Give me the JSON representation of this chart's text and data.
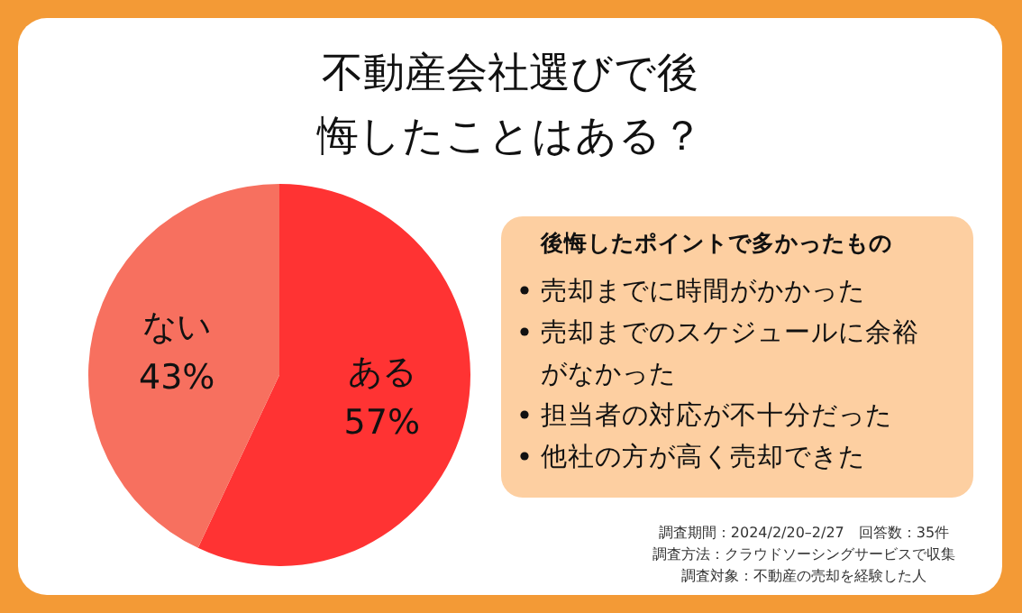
{
  "chart_data": [
    {
      "type": "pie",
      "title": "不動産会社選びで後悔したことはある？",
      "categories": [
        "ある",
        "ない"
      ],
      "values": [
        57,
        43
      ],
      "value_labels": [
        "57%",
        "43%"
      ],
      "colors": [
        "#ff3333",
        "#f7705f"
      ],
      "annotations": [
        "調査期間：2024/2/20–2/27　回答数：35件",
        "調査方法：クラウドソーシングサービスで収集",
        "調査対象：不動産の売却を経験した人"
      ]
    },
    {
      "type": "other",
      "title": "後悔したポイントで多かったもの",
      "annotations": [
        "売却までに時間がかかった",
        "売却までのスケジュールに余裕がなかった",
        "担当者の対応が不十分だった",
        "他社の方が高く売却できた"
      ]
    }
  ]
}
